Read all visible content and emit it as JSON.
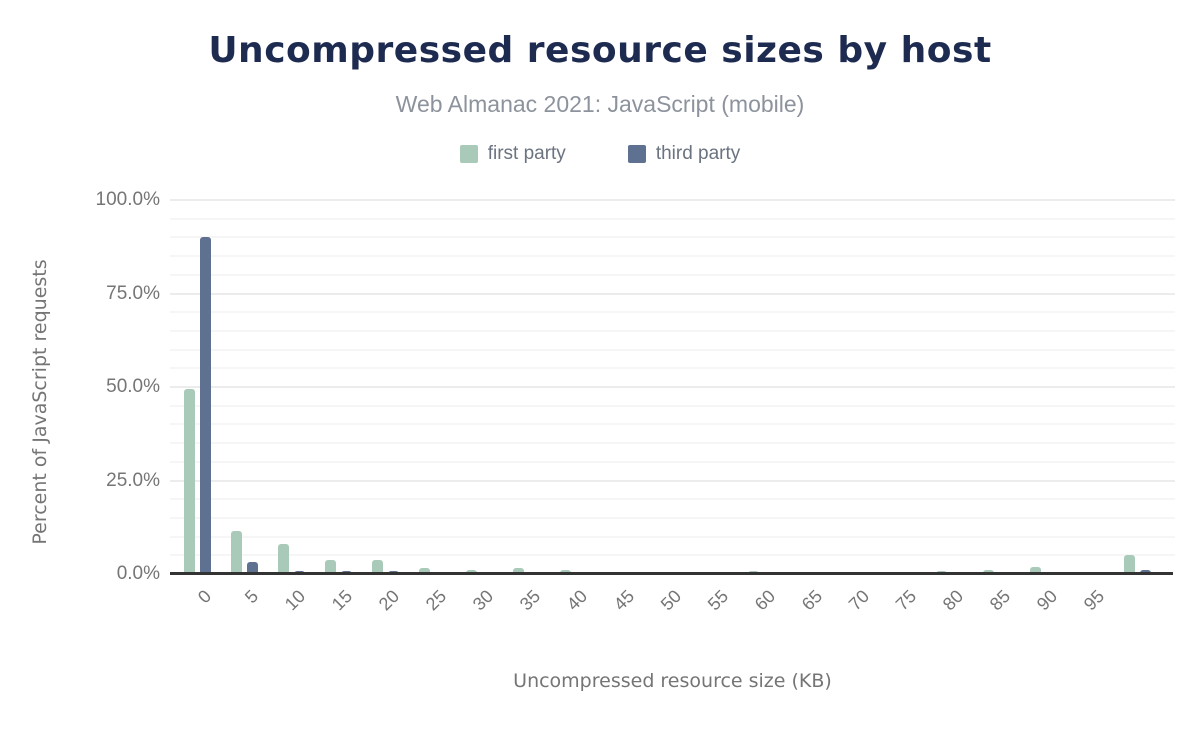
{
  "chart_data": {
    "type": "bar",
    "title": "Uncompressed resource sizes by host",
    "subtitle": "Web Almanac 2021: JavaScript (mobile)",
    "xlabel": "Uncompressed resource size (KB)",
    "ylabel": "Percent of JavaScript requests",
    "categories": [
      "0",
      "5",
      "10",
      "15",
      "20",
      "25",
      "30",
      "35",
      "40",
      "45",
      "50",
      "55",
      "60",
      "65",
      "70",
      "75",
      "80",
      "85",
      "90",
      "95",
      ""
    ],
    "series": [
      {
        "name": "first party",
        "color": "#a9cab8",
        "values": [
          49.4,
          11.6,
          8.1,
          3.7,
          3.7,
          1.6,
          1.2,
          1.6,
          1.2,
          0.6,
          0.6,
          0.6,
          0.7,
          0.6,
          0.1,
          0.1,
          0.8,
          1.1,
          2.0,
          0.6,
          5.0
        ]
      },
      {
        "name": "third party",
        "color": "#5f7190",
        "values": [
          90.0,
          3.2,
          0.8,
          0.9,
          0.8,
          0.2,
          0.1,
          0.1,
          0.1,
          0.1,
          0.1,
          0.1,
          0.1,
          0.1,
          0.0,
          0.0,
          0.1,
          0.2,
          0.3,
          0.1,
          1.0
        ]
      }
    ],
    "ylim": [
      0,
      100
    ],
    "y_ticks": [
      {
        "value": 0,
        "label": "0.0%"
      },
      {
        "value": 25,
        "label": "25.0%"
      },
      {
        "value": 50,
        "label": "50.0%"
      },
      {
        "value": 75,
        "label": "75.0%"
      },
      {
        "value": 100,
        "label": "100.0%"
      }
    ],
    "grid": "horizontal, minor every 5%, major every 25%",
    "legend_position": "top-center"
  },
  "colors": {
    "title_text": "#1e2b50",
    "subtitle_text": "#8d939c",
    "legend_text": "#6a7380",
    "axis_text": "#757575",
    "axis_line": "#333333",
    "gridline_minor": "#f6f6f6",
    "gridline_major": "#ececec",
    "first_party": "#a9cab8",
    "third_party": "#5f7190",
    "background": "#ffffff"
  }
}
